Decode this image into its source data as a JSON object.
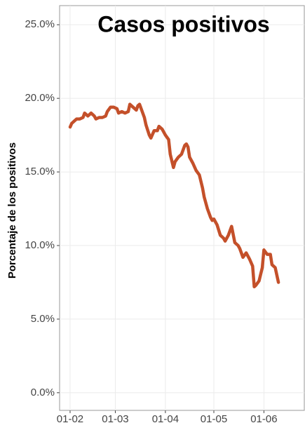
{
  "chart_data": {
    "type": "line",
    "title": "Casos positivos",
    "ylabel": "Porcentaje de los positivos",
    "x": [
      32,
      33,
      35,
      36,
      38,
      40,
      41,
      43,
      45,
      47,
      48,
      50,
      52,
      54,
      55,
      57,
      59,
      61,
      62,
      64,
      66,
      68,
      69,
      71,
      73,
      74,
      75,
      76,
      78,
      79,
      81,
      82,
      84,
      86,
      87,
      89,
      91,
      93,
      94,
      96,
      97,
      99,
      101,
      103,
      104,
      105,
      106,
      108,
      110,
      112,
      114,
      115,
      117,
      119,
      120,
      121,
      123,
      125,
      127,
      128,
      130,
      132,
      134,
      136,
      137,
      139,
      141,
      143,
      145,
      146,
      147,
      149,
      151,
      152,
      154,
      156,
      157,
      159,
      161
    ],
    "series": [
      {
        "name": "Casos positivos",
        "color": "#c4502a",
        "values": [
          18.05,
          18.3,
          18.5,
          18.6,
          18.6,
          18.7,
          19.0,
          18.8,
          19.0,
          18.8,
          18.6,
          18.7,
          18.7,
          18.8,
          19.1,
          19.4,
          19.4,
          19.3,
          19.0,
          19.1,
          19.0,
          19.1,
          19.6,
          19.4,
          19.2,
          19.5,
          19.6,
          19.3,
          18.7,
          18.2,
          17.5,
          17.3,
          17.8,
          17.8,
          18.1,
          17.9,
          17.5,
          17.2,
          16.2,
          15.3,
          15.7,
          16.0,
          16.2,
          16.8,
          16.9,
          16.7,
          16.0,
          15.6,
          15.1,
          14.8,
          13.9,
          13.3,
          12.5,
          11.9,
          11.7,
          11.8,
          11.4,
          10.7,
          10.5,
          10.3,
          10.7,
          11.3,
          10.2,
          10.0,
          9.8,
          9.2,
          9.5,
          9.1,
          8.6,
          7.2,
          7.3,
          7.6,
          8.5,
          9.7,
          9.4,
          9.4,
          8.7,
          8.5,
          7.5
        ]
      }
    ],
    "xlim": [
      25.5,
      177
    ],
    "xticks": [
      {
        "value": 32,
        "label": "01-02"
      },
      {
        "value": 60,
        "label": "01-03"
      },
      {
        "value": 91,
        "label": "01-04"
      },
      {
        "value": 121,
        "label": "01-05"
      },
      {
        "value": 152,
        "label": "01-06"
      }
    ],
    "ylim": [
      -1.2,
      26.3
    ],
    "yticks": [
      {
        "value": 0,
        "label": "0.0%"
      },
      {
        "value": 5,
        "label": "5.0%"
      },
      {
        "value": 10,
        "label": "10.0%"
      },
      {
        "value": 15,
        "label": "15.0%"
      },
      {
        "value": 20,
        "label": "20.0%"
      },
      {
        "value": 25,
        "label": "25.0%"
      }
    ],
    "grid": true
  }
}
